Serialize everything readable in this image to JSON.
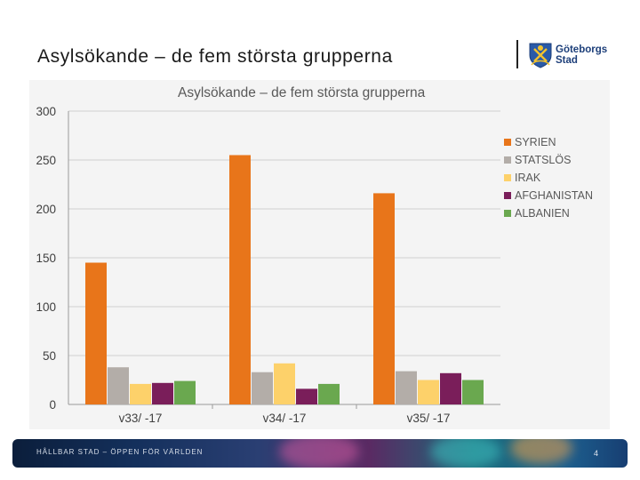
{
  "slide": {
    "title": "Asylsökande – de fem största grupperna",
    "logo_text_line1": "Göteborgs",
    "logo_text_line2": "Stad",
    "footer_text": "HÅLLBAR STAD – ÖPPEN FÖR VÄRLDEN",
    "page_number": "4"
  },
  "colors": {
    "syrien": "#e8751a",
    "statslos": "#b3ada8",
    "irak": "#fdd16a",
    "afghanistan": "#7a1e5a",
    "albanien": "#6aa84f",
    "brand": "#1d3f7a"
  },
  "chart_data": {
    "type": "bar",
    "title": "Asylsökande – de fem största grupperna",
    "xlabel": "",
    "ylabel": "",
    "ylim": [
      0,
      300
    ],
    "yticks": [
      "0",
      "50",
      "100",
      "150",
      "200",
      "250",
      "300"
    ],
    "grid": true,
    "legend_position": "right",
    "categories": [
      "v33/ -17",
      "v34/ -17",
      "v35/ -17"
    ],
    "series": [
      {
        "name": "SYRIEN",
        "color": "#e8751a",
        "values": [
          145,
          255,
          216
        ]
      },
      {
        "name": "STATSLÖS",
        "color": "#b3ada8",
        "values": [
          38,
          33,
          34
        ]
      },
      {
        "name": "IRAK",
        "color": "#fdd16a",
        "values": [
          21,
          42,
          25
        ]
      },
      {
        "name": "AFGHANISTAN",
        "color": "#7a1e5a",
        "values": [
          22,
          16,
          32
        ]
      },
      {
        "name": "ALBANIEN",
        "color": "#6aa84f",
        "values": [
          24,
          21,
          25
        ]
      }
    ]
  }
}
